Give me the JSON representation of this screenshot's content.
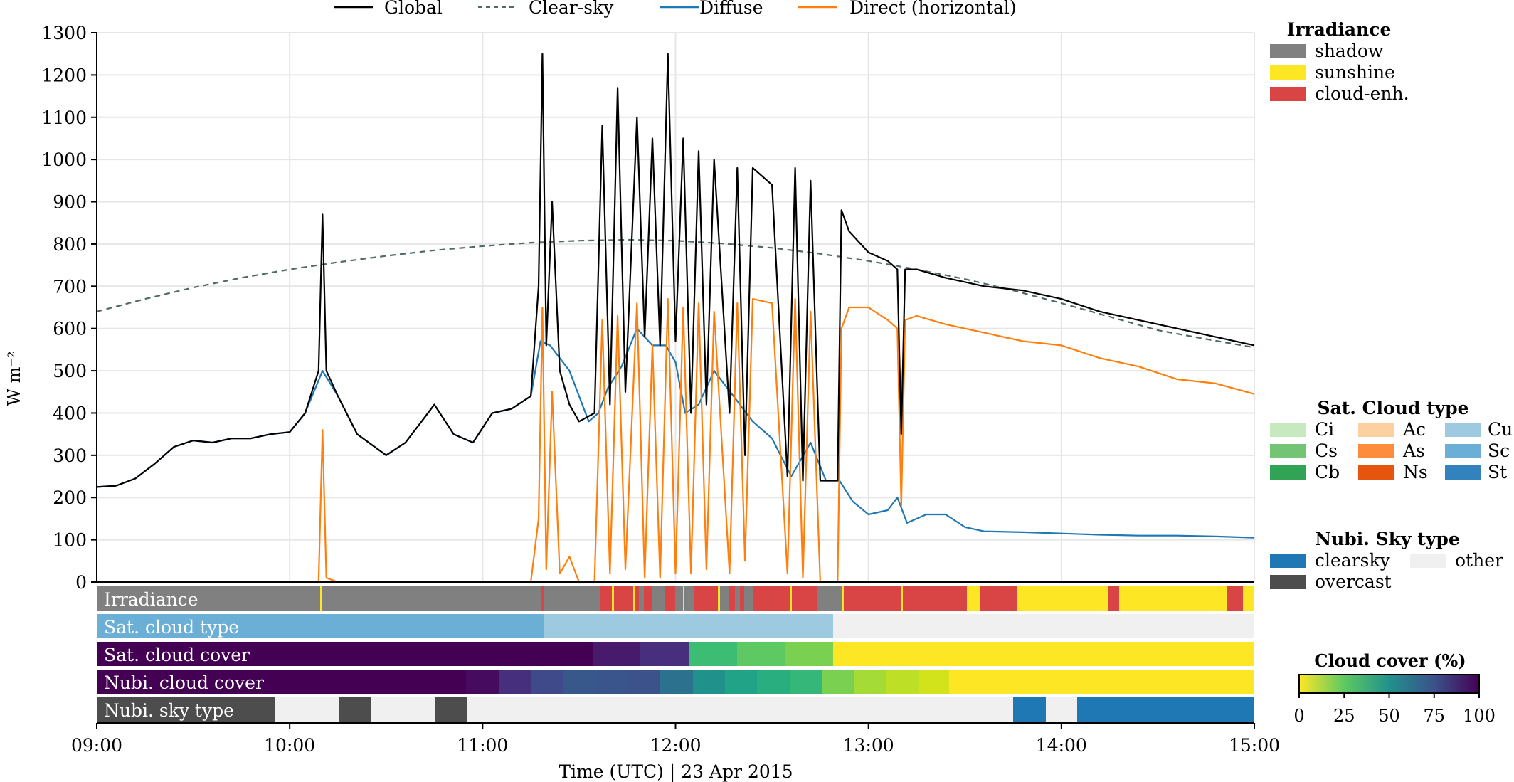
{
  "chart_data": {
    "type": "line",
    "ylabel": "W m⁻²",
    "xlabel": "Time (UTC) | 23 Apr 2015",
    "xlim": [
      9.0,
      15.0
    ],
    "ylim": [
      0,
      1300
    ],
    "yticks": [
      0,
      100,
      200,
      300,
      400,
      500,
      600,
      700,
      800,
      900,
      1000,
      1100,
      1200,
      1300
    ],
    "xticks": [
      {
        "value": 9,
        "label": "09:00"
      },
      {
        "value": 10,
        "label": "10:00"
      },
      {
        "value": 11,
        "label": "11:00"
      },
      {
        "value": 12,
        "label": "12:00"
      },
      {
        "value": 13,
        "label": "13:00"
      },
      {
        "value": 14,
        "label": "14:00"
      },
      {
        "value": 15,
        "label": "15:00"
      }
    ],
    "grid": true,
    "legend": {
      "placement": "top",
      "entries": [
        {
          "label": "Global",
          "color": "#000000",
          "style": "solid"
        },
        {
          "label": "Clear-sky",
          "color": "#4f6b68",
          "style": "dashed"
        },
        {
          "label": "Diffuse",
          "color": "#1f77b4",
          "style": "solid"
        },
        {
          "label": "Direct (horizontal)",
          "color": "#ff7f0e",
          "style": "solid"
        }
      ]
    },
    "series": [
      {
        "name": "Clear-sky",
        "color": "#4f6b68",
        "dashed": true,
        "x": [
          9.0,
          9.25,
          9.5,
          9.75,
          10.0,
          10.25,
          10.5,
          10.75,
          11.0,
          11.25,
          11.5,
          11.75,
          12.0,
          12.25,
          12.5,
          12.75,
          13.0,
          13.25,
          13.5,
          13.75,
          14.0,
          14.25,
          14.5,
          14.75,
          15.0
        ],
        "y": [
          640,
          670,
          697,
          720,
          740,
          757,
          772,
          785,
          795,
          803,
          808,
          810,
          808,
          801,
          791,
          777,
          760,
          740,
          717,
          690,
          660,
          628,
          596,
          575,
          555
        ]
      },
      {
        "name": "Diffuse",
        "color": "#1f77b4",
        "x": [
          9.0,
          9.1,
          9.2,
          9.3,
          9.4,
          9.5,
          9.6,
          9.7,
          9.8,
          9.9,
          10.0,
          10.08,
          10.17,
          10.25,
          10.35,
          10.5,
          10.6,
          10.7,
          10.75,
          10.85,
          10.95,
          11.05,
          11.15,
          11.25,
          11.3,
          11.35,
          11.45,
          11.55,
          11.6,
          11.65,
          11.72,
          11.8,
          11.88,
          11.95,
          12.0,
          12.05,
          12.12,
          12.2,
          12.3,
          12.4,
          12.5,
          12.6,
          12.7,
          12.78,
          12.85,
          12.92,
          13.0,
          13.1,
          13.15,
          13.2,
          13.3,
          13.4,
          13.5,
          13.6,
          13.8,
          14.0,
          14.2,
          14.4,
          14.6,
          14.8,
          15.0
        ],
        "y": [
          225,
          228,
          245,
          280,
          320,
          335,
          330,
          340,
          340,
          350,
          355,
          400,
          500,
          440,
          350,
          300,
          330,
          390,
          420,
          350,
          330,
          400,
          410,
          440,
          570,
          560,
          500,
          380,
          400,
          460,
          510,
          600,
          560,
          560,
          520,
          400,
          420,
          500,
          440,
          380,
          340,
          250,
          330,
          240,
          240,
          190,
          160,
          170,
          200,
          140,
          160,
          160,
          130,
          120,
          118,
          115,
          112,
          110,
          110,
          108,
          105
        ]
      },
      {
        "name": "Direct (horizontal)",
        "color": "#ff7f0e",
        "x": [
          9.0,
          10.15,
          10.17,
          10.19,
          10.25,
          11.25,
          11.29,
          11.31,
          11.33,
          11.36,
          11.4,
          11.45,
          11.5,
          11.58,
          11.62,
          11.66,
          11.7,
          11.74,
          11.8,
          11.84,
          11.88,
          11.92,
          11.96,
          12.0,
          12.04,
          12.08,
          12.12,
          12.16,
          12.2,
          12.28,
          12.32,
          12.36,
          12.4,
          12.5,
          12.58,
          12.62,
          12.66,
          12.7,
          12.75,
          12.8,
          12.84,
          12.86,
          12.9,
          13.0,
          13.1,
          13.15,
          13.17,
          13.19,
          13.25,
          13.4,
          13.6,
          13.8,
          14.0,
          14.2,
          14.4,
          14.6,
          14.8,
          15.0
        ],
        "y": [
          0,
          0,
          360,
          10,
          0,
          0,
          150,
          650,
          30,
          450,
          20,
          60,
          0,
          0,
          620,
          20,
          630,
          30,
          660,
          10,
          560,
          10,
          670,
          20,
          650,
          20,
          660,
          30,
          640,
          20,
          660,
          50,
          670,
          660,
          20,
          670,
          10,
          640,
          0,
          0,
          0,
          600,
          650,
          650,
          620,
          600,
          180,
          620,
          630,
          610,
          590,
          570,
          560,
          530,
          510,
          480,
          470,
          445
        ]
      },
      {
        "name": "Global",
        "color": "#000000",
        "x": [
          9.0,
          9.1,
          9.2,
          9.3,
          9.4,
          9.5,
          9.6,
          9.7,
          9.8,
          9.9,
          10.0,
          10.08,
          10.15,
          10.17,
          10.19,
          10.25,
          10.35,
          10.5,
          10.6,
          10.7,
          10.75,
          10.85,
          10.95,
          11.05,
          11.15,
          11.25,
          11.29,
          11.31,
          11.33,
          11.36,
          11.4,
          11.45,
          11.5,
          11.58,
          11.62,
          11.66,
          11.7,
          11.74,
          11.8,
          11.84,
          11.88,
          11.92,
          11.96,
          12.0,
          12.04,
          12.08,
          12.12,
          12.16,
          12.2,
          12.28,
          12.32,
          12.36,
          12.4,
          12.5,
          12.58,
          12.62,
          12.66,
          12.7,
          12.75,
          12.8,
          12.84,
          12.86,
          12.9,
          13.0,
          13.1,
          13.15,
          13.17,
          13.19,
          13.25,
          13.4,
          13.6,
          13.8,
          14.0,
          14.2,
          14.4,
          14.6,
          14.8,
          15.0
        ],
        "y": [
          225,
          228,
          245,
          280,
          320,
          335,
          330,
          340,
          340,
          350,
          355,
          400,
          500,
          870,
          500,
          440,
          350,
          300,
          330,
          390,
          420,
          350,
          330,
          400,
          410,
          440,
          700,
          1250,
          560,
          900,
          500,
          420,
          380,
          400,
          1080,
          420,
          1170,
          450,
          1100,
          580,
          1050,
          560,
          1250,
          570,
          1050,
          400,
          1020,
          420,
          1000,
          400,
          980,
          300,
          980,
          940,
          250,
          980,
          240,
          950,
          240,
          240,
          240,
          880,
          830,
          780,
          760,
          740,
          350,
          740,
          740,
          720,
          700,
          690,
          670,
          640,
          620,
          600,
          580,
          560
        ]
      }
    ],
    "category_bars": [
      {
        "label": "Irradiance"
      },
      {
        "label": "Sat. cloud type"
      },
      {
        "label": "Sat. cloud cover"
      },
      {
        "label": "Nubi. cloud cover"
      },
      {
        "label": "Nubi. sky type"
      }
    ],
    "legends": [
      {
        "title": "Irradiance",
        "entries": [
          {
            "label": "shadow",
            "color": "#808080"
          },
          {
            "label": "sunshine",
            "color": "#fde725"
          },
          {
            "label": "cloud-enh.",
            "color": "#d94444"
          }
        ]
      },
      {
        "title": "Sat. Cloud type",
        "entries": [
          {
            "label": "Ci",
            "color": "#c7e9c0"
          },
          {
            "label": "Cs",
            "color": "#74c476"
          },
          {
            "label": "Cb",
            "color": "#31a354"
          },
          {
            "label": "Ac",
            "color": "#fdd0a2"
          },
          {
            "label": "As",
            "color": "#fd8d3c"
          },
          {
            "label": "Ns",
            "color": "#e6550d"
          },
          {
            "label": "Cu",
            "color": "#9ecae1"
          },
          {
            "label": "Sc",
            "color": "#6baed6"
          },
          {
            "label": "St",
            "color": "#3182bd"
          }
        ]
      },
      {
        "title": "Nubi. Sky type",
        "entries": [
          {
            "label": "clearsky",
            "color": "#1f77b4"
          },
          {
            "label": "other",
            "color": "#f0f0f0"
          },
          {
            "label": "overcast",
            "color": "#4d4d4d"
          }
        ]
      }
    ],
    "colorbar": {
      "title": "Cloud cover (%)",
      "ticks": [
        "0",
        "25",
        "50",
        "75",
        "100"
      ]
    }
  }
}
